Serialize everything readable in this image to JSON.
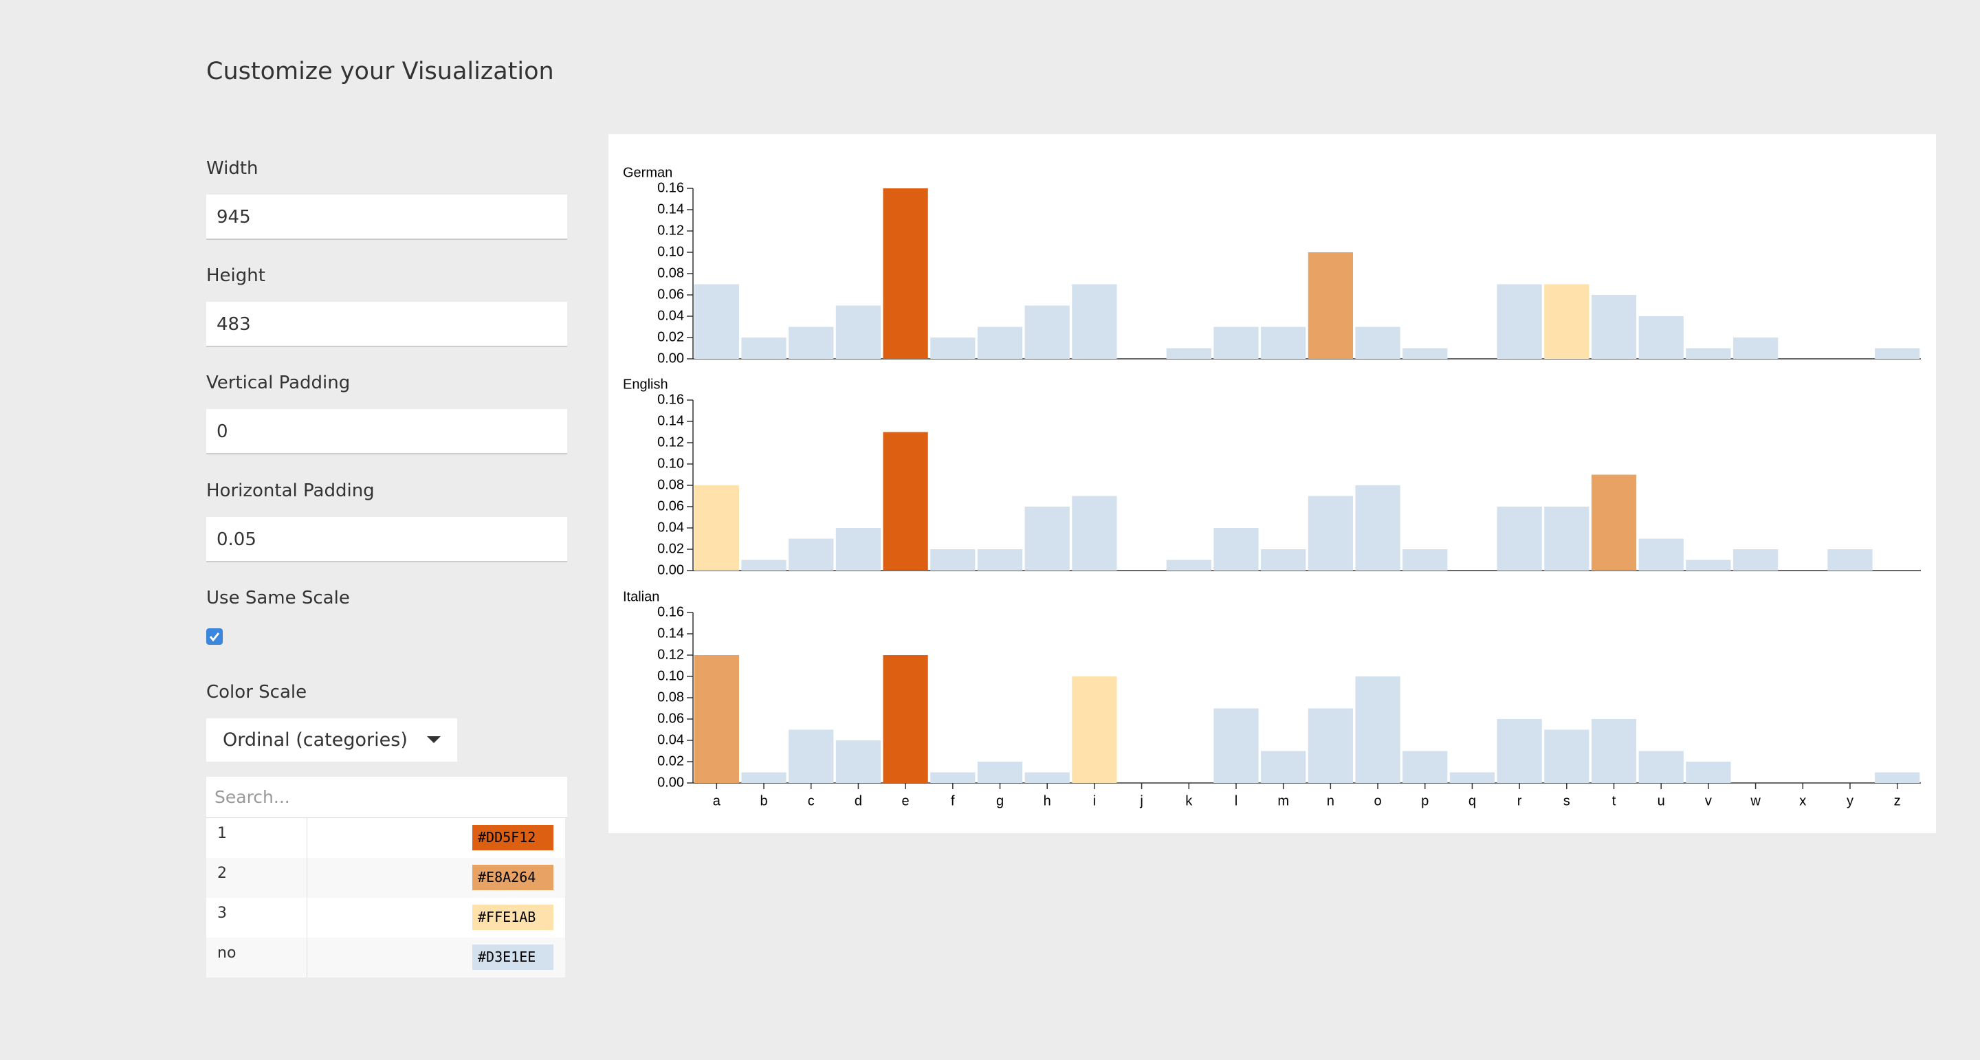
{
  "title": "Customize your Visualization",
  "fields": [
    {
      "label": "Width",
      "value": "945"
    },
    {
      "label": "Height",
      "value": "483"
    },
    {
      "label": "Vertical Padding",
      "value": "0"
    },
    {
      "label": "Horizontal Padding",
      "value": "0.05"
    }
  ],
  "same_scale": {
    "label": "Use Same Scale",
    "checked": true
  },
  "color_scale": {
    "label": "Color Scale",
    "selected": "Ordinal (categories)",
    "search_placeholder": "Search...",
    "entries": [
      {
        "key": "1",
        "color": "#DD5F12"
      },
      {
        "key": "2",
        "color": "#E8A264"
      },
      {
        "key": "3",
        "color": "#FFE1AB"
      },
      {
        "key": "no",
        "color": "#D3E1EE"
      }
    ]
  },
  "chart_data": [
    {
      "type": "bar",
      "title": "German",
      "values": [
        0.07,
        0.02,
        0.03,
        0.05,
        0.16,
        0.02,
        0.03,
        0.05,
        0.07,
        0,
        0.01,
        0.03,
        0.03,
        0.1,
        0.03,
        0.01,
        0,
        0.07,
        0.07,
        0.06,
        0.04,
        0.01,
        0.02,
        0,
        0,
        0.01
      ],
      "colors": [
        "#D3E1EE",
        "#D3E1EE",
        "#D3E1EE",
        "#D3E1EE",
        "#DD5F12",
        "#D3E1EE",
        "#D3E1EE",
        "#D3E1EE",
        "#D3E1EE",
        "#D3E1EE",
        "#D3E1EE",
        "#D3E1EE",
        "#D3E1EE",
        "#E8A264",
        "#D3E1EE",
        "#D3E1EE",
        "#D3E1EE",
        "#D3E1EE",
        "#FFE1AB",
        "#D3E1EE",
        "#D3E1EE",
        "#D3E1EE",
        "#D3E1EE",
        "#D3E1EE",
        "#D3E1EE",
        "#D3E1EE"
      ],
      "ylim": [
        0,
        0.16
      ],
      "yticks": [
        {
          "value": 0,
          "label": "0.00"
        },
        {
          "value": 0.02,
          "label": "0.02"
        },
        {
          "value": 0.04,
          "label": "0.04"
        },
        {
          "value": 0.06,
          "label": "0.06"
        },
        {
          "value": 0.08,
          "label": "0.08"
        },
        {
          "value": 0.1,
          "label": "0.10"
        },
        {
          "value": 0.12,
          "label": "0.12"
        },
        {
          "value": 0.14,
          "label": "0.14"
        },
        {
          "value": 0.16,
          "label": "0.16"
        }
      ]
    },
    {
      "type": "bar",
      "title": "English",
      "values": [
        0.08,
        0.01,
        0.03,
        0.04,
        0.13,
        0.02,
        0.02,
        0.06,
        0.07,
        0,
        0.01,
        0.04,
        0.02,
        0.07,
        0.08,
        0.02,
        0,
        0.06,
        0.06,
        0.09,
        0.03,
        0.01,
        0.02,
        0,
        0.02,
        0
      ],
      "colors": [
        "#FFE1AB",
        "#D3E1EE",
        "#D3E1EE",
        "#D3E1EE",
        "#DD5F12",
        "#D3E1EE",
        "#D3E1EE",
        "#D3E1EE",
        "#D3E1EE",
        "#D3E1EE",
        "#D3E1EE",
        "#D3E1EE",
        "#D3E1EE",
        "#D3E1EE",
        "#D3E1EE",
        "#D3E1EE",
        "#D3E1EE",
        "#D3E1EE",
        "#D3E1EE",
        "#E8A264",
        "#D3E1EE",
        "#D3E1EE",
        "#D3E1EE",
        "#D3E1EE",
        "#D3E1EE",
        "#D3E1EE"
      ],
      "ylim": [
        0,
        0.16
      ],
      "yticks": [
        {
          "value": 0,
          "label": "0.00"
        },
        {
          "value": 0.02,
          "label": "0.02"
        },
        {
          "value": 0.04,
          "label": "0.04"
        },
        {
          "value": 0.06,
          "label": "0.06"
        },
        {
          "value": 0.08,
          "label": "0.08"
        },
        {
          "value": 0.1,
          "label": "0.10"
        },
        {
          "value": 0.12,
          "label": "0.12"
        },
        {
          "value": 0.14,
          "label": "0.14"
        },
        {
          "value": 0.16,
          "label": "0.16"
        }
      ]
    },
    {
      "type": "bar",
      "title": "Italian",
      "categories": [
        "a",
        "b",
        "c",
        "d",
        "e",
        "f",
        "g",
        "h",
        "i",
        "j",
        "k",
        "l",
        "m",
        "n",
        "o",
        "p",
        "q",
        "r",
        "s",
        "t",
        "u",
        "v",
        "w",
        "x",
        "y",
        "z"
      ],
      "values": [
        0.12,
        0.01,
        0.05,
        0.04,
        0.12,
        0.01,
        0.02,
        0.01,
        0.1,
        0,
        0,
        0.07,
        0.03,
        0.07,
        0.1,
        0.03,
        0.01,
        0.06,
        0.05,
        0.06,
        0.03,
        0.02,
        0,
        0,
        0,
        0.01
      ],
      "colors": [
        "#E8A264",
        "#D3E1EE",
        "#D3E1EE",
        "#D3E1EE",
        "#DD5F12",
        "#D3E1EE",
        "#D3E1EE",
        "#D3E1EE",
        "#FFE1AB",
        "#D3E1EE",
        "#D3E1EE",
        "#D3E1EE",
        "#D3E1EE",
        "#D3E1EE",
        "#D3E1EE",
        "#D3E1EE",
        "#D3E1EE",
        "#D3E1EE",
        "#D3E1EE",
        "#D3E1EE",
        "#D3E1EE",
        "#D3E1EE",
        "#D3E1EE",
        "#D3E1EE",
        "#D3E1EE",
        "#D3E1EE"
      ],
      "ylim": [
        0,
        0.16
      ],
      "yticks": [
        {
          "value": 0,
          "label": "0.00"
        },
        {
          "value": 0.02,
          "label": "0.02"
        },
        {
          "value": 0.04,
          "label": "0.04"
        },
        {
          "value": 0.06,
          "label": "0.06"
        },
        {
          "value": 0.08,
          "label": "0.08"
        },
        {
          "value": 0.1,
          "label": "0.10"
        },
        {
          "value": 0.12,
          "label": "0.12"
        },
        {
          "value": 0.14,
          "label": "0.14"
        },
        {
          "value": 0.16,
          "label": "0.16"
        }
      ]
    }
  ]
}
